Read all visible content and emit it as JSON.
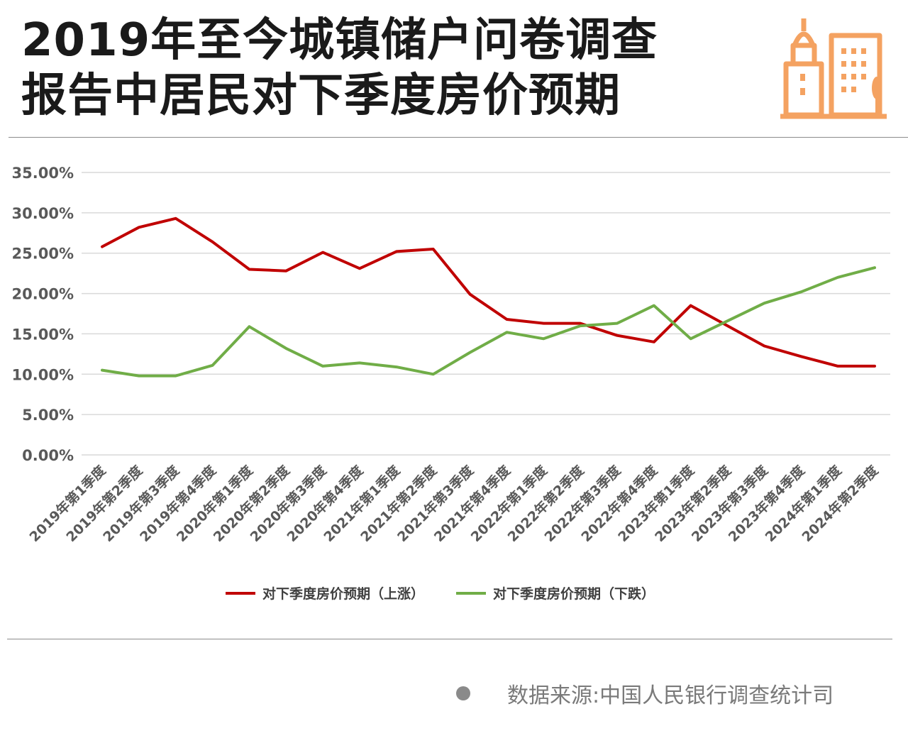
{
  "header": {
    "title_line1": "2019年至今城镇储户问卷调查",
    "title_line2": "报告中居民对下季度房价预期"
  },
  "icons": {
    "logo": "city-buildings-icon",
    "source_bullet": "bullet-dot-icon"
  },
  "colors": {
    "rise": "#c00000",
    "fall": "#70ad47",
    "logo": "#f4a261"
  },
  "chart_data": {
    "type": "line",
    "categories": [
      "2019年第1季度",
      "2019年第2季度",
      "2019年第3季度",
      "2019年第4季度",
      "2020年第1季度",
      "2020年第2季度",
      "2020年第3季度",
      "2020年第4季度",
      "2021年第1季度",
      "2021年第2季度",
      "2021年第3季度",
      "2021年第4季度",
      "2022年第1季度",
      "2022年第2季度",
      "2022年第3季度",
      "2022年第4季度",
      "2023年第1季度",
      "2023年第2季度",
      "2023年第3季度",
      "2023年第4季度",
      "2024年第1季度",
      "2024年第2季度"
    ],
    "series": [
      {
        "name": "对下季度房价预期（上涨）",
        "color": "#c00000",
        "values": [
          25.8,
          28.2,
          29.3,
          26.4,
          23.0,
          22.8,
          25.1,
          23.1,
          25.2,
          25.5,
          19.9,
          16.8,
          16.3,
          16.3,
          14.8,
          14.0,
          18.5,
          16.0,
          13.5,
          12.2,
          11.0,
          11.0
        ]
      },
      {
        "name": "对下季度房价预期（下跌）",
        "color": "#70ad47",
        "values": [
          10.5,
          9.8,
          9.8,
          11.1,
          15.9,
          13.2,
          11.0,
          11.4,
          10.9,
          10.0,
          12.7,
          15.2,
          14.4,
          16.0,
          16.3,
          18.5,
          14.4,
          16.6,
          18.8,
          20.2,
          22.0,
          23.2
        ]
      }
    ],
    "yticks": [
      "35.00%",
      "30.00%",
      "25.00%",
      "20.00%",
      "15.00%",
      "10.00%",
      "5.00%",
      "0.00%"
    ],
    "ylim": [
      0,
      35
    ],
    "grid": true,
    "legend_position": "bottom"
  },
  "footer": {
    "source": "数据来源:中国人民银行调查统计司"
  }
}
